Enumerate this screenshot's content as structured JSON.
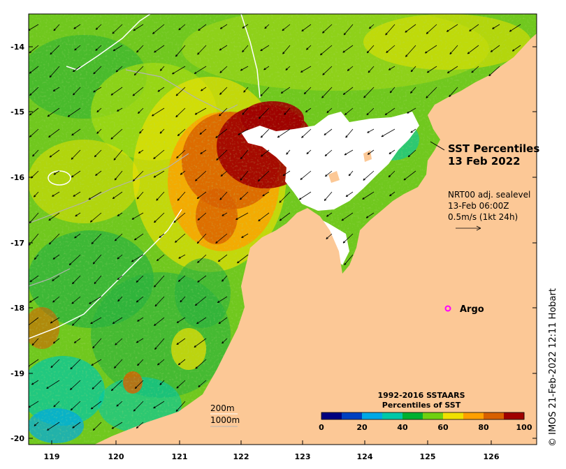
{
  "map": {
    "title_line1": "SST Percentiles",
    "title_line2": "13 Feb 2022",
    "wind_info": {
      "line1": "NRT00 adj. sealevel",
      "line2": "13-Feb 06:00Z",
      "line3": "0.5m/s (1kt 24h)"
    },
    "argo_label": "Argo",
    "contour_labels": {
      "depth1": "200m",
      "depth2": "1000m"
    },
    "colorbar": {
      "title_line1": "1992-2016 SSTAARS",
      "title_line2": "Percentiles of SST",
      "tick_labels": [
        "0",
        "20",
        "40",
        "60",
        "80",
        "100"
      ],
      "colors": [
        "#00007f",
        "#0040c0",
        "#00a8e6",
        "#00c8a8",
        "#00b030",
        "#70d010",
        "#f0e000",
        "#ffa000",
        "#d86000",
        "#a00000"
      ]
    },
    "lat_ticks": [
      "-14",
      "-15",
      "-16",
      "-17",
      "-18",
      "-19",
      "-20"
    ],
    "lon_ticks": [
      "119",
      "120",
      "121",
      "122",
      "123",
      "124",
      "125",
      "126"
    ],
    "credit": "© IMOS 21-Feb-2022 12:11 Hobart",
    "colors": {
      "land": "#fcc896",
      "missing": "#ffffff",
      "argo_marker": "#ff00ff",
      "contour_200m": "#ffffff",
      "contour_1000m": "#b4b4b4"
    }
  }
}
